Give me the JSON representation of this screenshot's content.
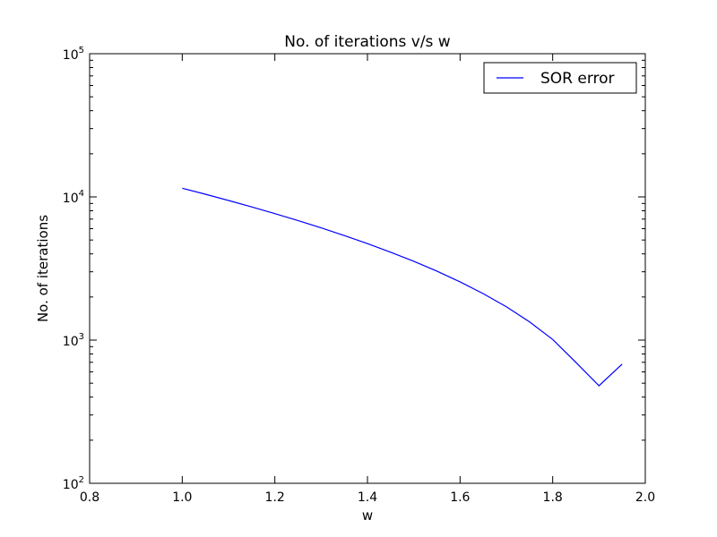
{
  "chart_data": {
    "type": "line",
    "title": "No. of iterations v/s w",
    "xlabel": "w",
    "ylabel": "No. of iterations",
    "xlim": [
      0.8,
      2.0
    ],
    "ylim": [
      100,
      100000
    ],
    "yscale": "log",
    "grid": false,
    "legend_position": "top-right",
    "x_ticks": [
      0.8,
      1.0,
      1.2,
      1.4,
      1.6,
      1.8,
      2.0
    ],
    "x_tick_labels": [
      "0.8",
      "1.0",
      "1.2",
      "1.4",
      "1.6",
      "1.8",
      "2.0"
    ],
    "y_ticks": [
      100,
      1000,
      10000,
      100000
    ],
    "y_tick_base": "10",
    "y_tick_exponents": [
      "2",
      "3",
      "4",
      "5"
    ],
    "series": [
      {
        "name": "SOR error",
        "color": "#0000ff",
        "x": [
          1.0,
          1.05,
          1.1,
          1.15,
          1.2,
          1.25,
          1.3,
          1.35,
          1.4,
          1.45,
          1.5,
          1.55,
          1.6,
          1.65,
          1.7,
          1.75,
          1.8,
          1.85,
          1.9,
          1.95
        ],
        "y": [
          11500,
          10440,
          9440,
          8510,
          7640,
          6840,
          6080,
          5370,
          4720,
          4110,
          3550,
          3030,
          2550,
          2110,
          1710,
          1340,
          1010,
          700,
          480,
          680
        ]
      }
    ]
  }
}
